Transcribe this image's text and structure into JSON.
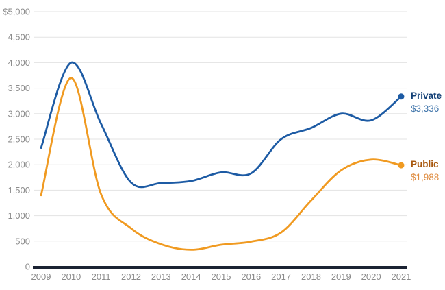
{
  "chart_data": {
    "type": "line",
    "title": "",
    "xlabel": "",
    "ylabel": "",
    "x": [
      2009,
      2010,
      2011,
      2012,
      2013,
      2014,
      2015,
      2016,
      2017,
      2018,
      2019,
      2020,
      2021
    ],
    "series": [
      {
        "name": "Private",
        "values": [
          2330,
          4000,
          2800,
          1650,
          1640,
          1680,
          1850,
          1830,
          2500,
          2720,
          3000,
          2870,
          3336
        ],
        "end_label": "$3,336",
        "line_color": "#1d5ba4",
        "name_color": "#123f75",
        "value_color": "#3f74aa"
      },
      {
        "name": "Public",
        "values": [
          1400,
          3700,
          1420,
          750,
          440,
          330,
          430,
          490,
          670,
          1300,
          1890,
          2100,
          1988
        ],
        "end_label": "$1,988",
        "line_color": "#f09a21",
        "name_color": "#a9590f",
        "value_color": "#df8c40"
      }
    ],
    "y_axis": {
      "min": 0,
      "max": 5000,
      "tick_step": 500,
      "tick_labels_top_to_bottom": [
        "$5,000",
        "4,500",
        "4,000",
        "3,500",
        "3,000",
        "2,500",
        "2,000",
        "1,500",
        "1,000",
        "500",
        "0"
      ]
    },
    "x_axis": {
      "tick_labels": [
        "2009",
        "2010",
        "2011",
        "2012",
        "2013",
        "2014",
        "2015",
        "2016",
        "2017",
        "2018",
        "2019",
        "2020",
        "2021"
      ]
    },
    "grid": true,
    "legend_position": "right-end-labels",
    "colors": {
      "background": "#ffffff",
      "gridline": "#e3e3e3",
      "axis_line": "#1b2333",
      "tick_text": "#8c8c8c"
    }
  }
}
